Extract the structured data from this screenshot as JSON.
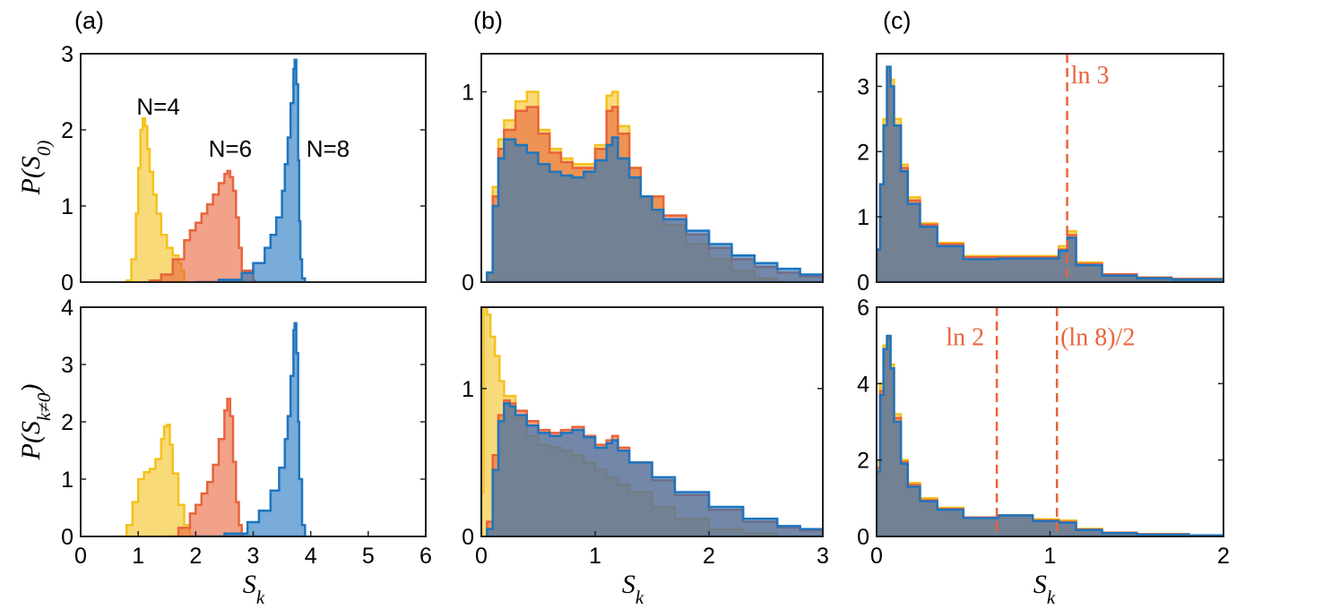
{
  "panel_labels": [
    "(a)",
    "(b)",
    "(c)"
  ],
  "y_labels": {
    "top": "P(S_0)",
    "bottom": "P(S_{k≠0})"
  },
  "x_label": "S_k",
  "colors": {
    "N4": "#f4c21f",
    "N6": "#e8643b",
    "N8": "#1f75be",
    "ref_line": "#e8643b"
  },
  "chart_data": [
    {
      "id": "a-top",
      "type": "area",
      "xlim": [
        0,
        6
      ],
      "ylim": [
        0,
        3
      ],
      "xticks": [],
      "yticks": [
        0,
        1,
        2,
        3
      ],
      "xlabel": "",
      "ylabel": "P(S_0)",
      "panel": "(a)",
      "annotations": [
        {
          "text": "N=4",
          "x": 1.35,
          "y": 2.2
        },
        {
          "text": "N=6",
          "x": 2.6,
          "y": 1.65
        },
        {
          "text": "N=8",
          "x": 4.3,
          "y": 1.65
        }
      ],
      "series": [
        {
          "name": "N=4",
          "color_key": "N4",
          "x": [
            0.8,
            0.88,
            0.96,
            1.0,
            1.04,
            1.08,
            1.12,
            1.16,
            1.2,
            1.26,
            1.32,
            1.4,
            1.5,
            1.6,
            1.7,
            1.75,
            1.8
          ],
          "y": [
            0.02,
            0.3,
            0.9,
            1.5,
            2.0,
            2.15,
            2.05,
            1.75,
            1.45,
            1.15,
            0.9,
            0.62,
            0.45,
            0.35,
            0.25,
            0.15,
            0.0
          ]
        },
        {
          "name": "N=6",
          "color_key": "N6",
          "x": [
            1.2,
            1.4,
            1.6,
            1.8,
            1.9,
            2.0,
            2.1,
            2.2,
            2.3,
            2.4,
            2.5,
            2.55,
            2.6,
            2.65,
            2.7,
            2.75,
            2.8,
            3.0
          ],
          "y": [
            0.02,
            0.1,
            0.3,
            0.55,
            0.68,
            0.78,
            0.9,
            1.02,
            1.15,
            1.3,
            1.42,
            1.46,
            1.38,
            1.2,
            0.85,
            0.45,
            0.15,
            0.02
          ]
        },
        {
          "name": "N=8",
          "color_key": "N8",
          "x": [
            2.0,
            2.4,
            2.8,
            3.0,
            3.2,
            3.3,
            3.4,
            3.5,
            3.55,
            3.6,
            3.65,
            3.7,
            3.72,
            3.75,
            3.78,
            3.8,
            3.82,
            3.85,
            3.9
          ],
          "y": [
            0.0,
            0.03,
            0.12,
            0.25,
            0.45,
            0.62,
            0.85,
            1.2,
            1.55,
            1.9,
            2.35,
            2.8,
            2.92,
            2.6,
            1.6,
            0.8,
            0.3,
            0.05,
            0.0
          ]
        }
      ]
    },
    {
      "id": "b-top",
      "type": "area",
      "xlim": [
        0,
        3
      ],
      "ylim": [
        0,
        1.2
      ],
      "xticks": [],
      "yticks": [
        0,
        1
      ],
      "xlabel": "",
      "ylabel": "",
      "panel": "(b)",
      "annotations": [],
      "series": [
        {
          "name": "N=4",
          "color_key": "N4",
          "x": [
            0.05,
            0.1,
            0.15,
            0.2,
            0.3,
            0.4,
            0.5,
            0.6,
            0.7,
            0.8,
            0.9,
            1.0,
            1.1,
            1.15,
            1.2,
            1.3,
            1.4,
            1.6,
            1.8,
            2.0,
            2.2,
            2.4,
            2.6
          ],
          "y": [
            0.05,
            0.5,
            0.75,
            0.85,
            0.95,
            1.0,
            0.8,
            0.7,
            0.65,
            0.62,
            0.62,
            0.72,
            0.98,
            1.0,
            0.82,
            0.6,
            0.45,
            0.3,
            0.2,
            0.12,
            0.06,
            0.02,
            0.0
          ]
        },
        {
          "name": "N=6",
          "color_key": "N6",
          "x": [
            0.05,
            0.1,
            0.15,
            0.2,
            0.3,
            0.4,
            0.5,
            0.6,
            0.7,
            0.8,
            0.9,
            1.0,
            1.1,
            1.15,
            1.2,
            1.3,
            1.4,
            1.6,
            1.8,
            2.0,
            2.2,
            2.4,
            2.6,
            2.8,
            3.0
          ],
          "y": [
            0.05,
            0.45,
            0.7,
            0.8,
            0.9,
            0.92,
            0.78,
            0.68,
            0.63,
            0.6,
            0.6,
            0.7,
            0.9,
            0.92,
            0.78,
            0.6,
            0.45,
            0.35,
            0.25,
            0.18,
            0.12,
            0.08,
            0.05,
            0.03,
            0.01
          ]
        },
        {
          "name": "N=8",
          "color_key": "N8",
          "x": [
            0.05,
            0.1,
            0.15,
            0.2,
            0.3,
            0.4,
            0.5,
            0.6,
            0.7,
            0.8,
            0.9,
            1.0,
            1.1,
            1.15,
            1.2,
            1.3,
            1.4,
            1.5,
            1.6,
            1.8,
            2.0,
            2.2,
            2.4,
            2.6,
            2.8,
            3.0
          ],
          "y": [
            0.05,
            0.4,
            0.65,
            0.75,
            0.72,
            0.68,
            0.62,
            0.58,
            0.56,
            0.55,
            0.58,
            0.64,
            0.72,
            0.76,
            0.65,
            0.55,
            0.45,
            0.38,
            0.33,
            0.27,
            0.2,
            0.14,
            0.1,
            0.07,
            0.04,
            0.02
          ]
        }
      ]
    },
    {
      "id": "c-top",
      "type": "area",
      "xlim": [
        0,
        2
      ],
      "ylim": [
        0,
        3.5
      ],
      "xticks": [],
      "yticks": [
        0,
        1,
        2,
        3
      ],
      "xlabel": "",
      "ylabel": "",
      "panel": "(c)",
      "annotations": [],
      "ref_lines": [
        {
          "x": 1.0986,
          "label": "ln 3",
          "label_x": 1.12,
          "label_y": 3.05
        }
      ],
      "series": [
        {
          "name": "N=4",
          "color_key": "N4",
          "x": [
            0.0,
            0.02,
            0.04,
            0.06,
            0.08,
            0.1,
            0.14,
            0.18,
            0.25,
            0.35,
            0.5,
            0.7,
            0.9,
            1.05,
            1.1,
            1.15,
            1.3,
            1.5,
            1.7,
            2.0
          ],
          "y": [
            0.5,
            1.5,
            2.5,
            3.3,
            3.1,
            2.5,
            1.8,
            1.3,
            0.9,
            0.6,
            0.4,
            0.4,
            0.4,
            0.55,
            0.78,
            0.3,
            0.12,
            0.07,
            0.05,
            0.02
          ]
        },
        {
          "name": "N=6",
          "color_key": "N6",
          "x": [
            0.0,
            0.02,
            0.04,
            0.06,
            0.08,
            0.1,
            0.14,
            0.18,
            0.25,
            0.35,
            0.5,
            0.7,
            0.9,
            1.05,
            1.1,
            1.15,
            1.3,
            1.5,
            1.7,
            2.0
          ],
          "y": [
            0.5,
            1.5,
            2.4,
            3.25,
            3.0,
            2.4,
            1.75,
            1.25,
            0.88,
            0.58,
            0.38,
            0.38,
            0.38,
            0.5,
            0.72,
            0.28,
            0.12,
            0.07,
            0.05,
            0.02
          ]
        },
        {
          "name": "N=8",
          "color_key": "N8",
          "x": [
            0.0,
            0.02,
            0.04,
            0.06,
            0.08,
            0.1,
            0.14,
            0.18,
            0.25,
            0.35,
            0.5,
            0.7,
            0.9,
            1.05,
            1.1,
            1.15,
            1.3,
            1.5,
            1.7,
            2.0
          ],
          "y": [
            0.5,
            1.5,
            2.4,
            3.3,
            3.0,
            2.4,
            1.7,
            1.2,
            0.85,
            0.55,
            0.35,
            0.36,
            0.36,
            0.48,
            0.68,
            0.26,
            0.1,
            0.06,
            0.04,
            0.02
          ]
        }
      ]
    },
    {
      "id": "a-bottom",
      "type": "area",
      "xlim": [
        0,
        6
      ],
      "ylim": [
        0,
        4
      ],
      "xticks": [
        0,
        1,
        2,
        3,
        4,
        5,
        6
      ],
      "yticks": [
        0,
        1,
        2,
        3,
        4
      ],
      "xlabel": "S_k",
      "ylabel": "P(S_{k≠0})",
      "panel": "",
      "annotations": [],
      "series": [
        {
          "name": "N=4",
          "color_key": "N4",
          "x": [
            0.6,
            0.8,
            0.9,
            1.0,
            1.1,
            1.2,
            1.3,
            1.4,
            1.45,
            1.5,
            1.55,
            1.6,
            1.7,
            1.8,
            1.9
          ],
          "y": [
            0.0,
            0.2,
            0.6,
            1.0,
            1.12,
            1.18,
            1.35,
            1.7,
            1.92,
            1.95,
            1.6,
            1.1,
            0.55,
            0.2,
            0.02
          ]
        },
        {
          "name": "N=6",
          "color_key": "N6",
          "x": [
            1.5,
            1.7,
            1.9,
            2.0,
            2.1,
            2.2,
            2.3,
            2.4,
            2.5,
            2.55,
            2.6,
            2.65,
            2.7,
            2.75,
            2.8
          ],
          "y": [
            0.0,
            0.15,
            0.4,
            0.55,
            0.75,
            0.95,
            1.25,
            1.7,
            2.2,
            2.4,
            2.1,
            1.3,
            0.6,
            0.2,
            0.02
          ]
        },
        {
          "name": "N=8",
          "color_key": "N8",
          "x": [
            2.0,
            2.5,
            2.9,
            3.1,
            3.3,
            3.45,
            3.55,
            3.6,
            3.65,
            3.7,
            3.72,
            3.75,
            3.78,
            3.8,
            3.85,
            3.9
          ],
          "y": [
            0.0,
            0.05,
            0.25,
            0.45,
            0.8,
            1.2,
            1.7,
            2.1,
            2.8,
            3.6,
            3.72,
            3.2,
            2.0,
            1.0,
            0.2,
            0.0
          ]
        }
      ]
    },
    {
      "id": "b-bottom",
      "type": "area",
      "xlim": [
        0,
        3
      ],
      "ylim": [
        0,
        1.55
      ],
      "xticks": [
        0,
        1,
        2,
        3
      ],
      "yticks": [
        0,
        1
      ],
      "xlabel": "S_k",
      "ylabel": "",
      "panel": "",
      "annotations": [],
      "series": [
        {
          "name": "N=4",
          "color_key": "N4",
          "x": [
            0.0,
            0.02,
            0.05,
            0.08,
            0.12,
            0.16,
            0.2,
            0.3,
            0.4,
            0.5,
            0.6,
            0.7,
            0.8,
            0.9,
            1.0,
            1.1,
            1.2,
            1.3,
            1.5,
            1.7,
            2.0,
            2.3,
            2.6
          ],
          "y": [
            0.3,
            1.55,
            1.5,
            1.35,
            1.22,
            1.05,
            0.95,
            0.8,
            0.68,
            0.62,
            0.6,
            0.58,
            0.55,
            0.5,
            0.45,
            0.4,
            0.35,
            0.3,
            0.2,
            0.12,
            0.05,
            0.02,
            0.0
          ]
        },
        {
          "name": "N=6",
          "color_key": "N6",
          "x": [
            0.05,
            0.1,
            0.15,
            0.2,
            0.25,
            0.3,
            0.4,
            0.5,
            0.6,
            0.7,
            0.8,
            0.9,
            1.0,
            1.1,
            1.15,
            1.2,
            1.3,
            1.5,
            1.7,
            2.0,
            2.3,
            2.6,
            2.8,
            3.0
          ],
          "y": [
            0.1,
            0.55,
            0.82,
            0.92,
            0.9,
            0.85,
            0.78,
            0.72,
            0.7,
            0.72,
            0.74,
            0.68,
            0.62,
            0.65,
            0.68,
            0.6,
            0.5,
            0.38,
            0.28,
            0.18,
            0.1,
            0.06,
            0.04,
            0.02
          ]
        },
        {
          "name": "N=8",
          "color_key": "N8",
          "x": [
            0.05,
            0.1,
            0.15,
            0.2,
            0.25,
            0.3,
            0.4,
            0.5,
            0.6,
            0.7,
            0.8,
            0.9,
            1.0,
            1.1,
            1.15,
            1.2,
            1.3,
            1.5,
            1.7,
            2.0,
            2.3,
            2.6,
            2.8,
            3.0
          ],
          "y": [
            0.05,
            0.45,
            0.78,
            0.9,
            0.88,
            0.82,
            0.75,
            0.7,
            0.68,
            0.7,
            0.72,
            0.67,
            0.6,
            0.63,
            0.65,
            0.58,
            0.5,
            0.4,
            0.3,
            0.2,
            0.12,
            0.07,
            0.05,
            0.03
          ]
        }
      ]
    },
    {
      "id": "c-bottom",
      "type": "area",
      "xlim": [
        0,
        2
      ],
      "ylim": [
        0,
        6
      ],
      "xticks": [
        0,
        1,
        2
      ],
      "yticks": [
        0,
        2,
        4,
        6
      ],
      "xlabel": "S_k",
      "ylabel": "",
      "panel": "",
      "annotations": [],
      "ref_lines": [
        {
          "x": 0.6931,
          "label": "ln 2",
          "label_x": 0.4,
          "label_y": 5.0
        },
        {
          "x": 1.0397,
          "label": "(ln 8)/2",
          "label_x": 1.06,
          "label_y": 5.0
        }
      ],
      "series": [
        {
          "name": "N=4",
          "color_key": "N4",
          "x": [
            0.0,
            0.02,
            0.04,
            0.06,
            0.08,
            0.1,
            0.14,
            0.18,
            0.25,
            0.35,
            0.5,
            0.7,
            0.9,
            1.05,
            1.15,
            1.3,
            1.5,
            1.8,
            2.0
          ],
          "y": [
            2.0,
            4.0,
            5.0,
            5.2,
            4.5,
            3.2,
            2.0,
            1.4,
            1.0,
            0.75,
            0.5,
            0.55,
            0.45,
            0.42,
            0.2,
            0.1,
            0.06,
            0.03,
            0.02
          ]
        },
        {
          "name": "N=6",
          "color_key": "N6",
          "x": [
            0.0,
            0.02,
            0.04,
            0.06,
            0.08,
            0.1,
            0.14,
            0.18,
            0.25,
            0.35,
            0.5,
            0.7,
            0.9,
            1.05,
            1.15,
            1.3,
            1.5,
            1.8,
            2.0
          ],
          "y": [
            1.8,
            3.8,
            4.9,
            5.2,
            4.4,
            3.1,
            1.95,
            1.35,
            0.95,
            0.72,
            0.5,
            0.55,
            0.42,
            0.38,
            0.18,
            0.1,
            0.06,
            0.03,
            0.02
          ]
        },
        {
          "name": "N=8",
          "color_key": "N8",
          "x": [
            0.0,
            0.02,
            0.04,
            0.06,
            0.08,
            0.1,
            0.14,
            0.18,
            0.25,
            0.35,
            0.5,
            0.7,
            0.9,
            1.05,
            1.15,
            1.3,
            1.5,
            1.8,
            2.0
          ],
          "y": [
            1.7,
            3.7,
            4.9,
            5.25,
            4.4,
            3.0,
            1.9,
            1.3,
            0.92,
            0.7,
            0.48,
            0.55,
            0.4,
            0.36,
            0.17,
            0.09,
            0.05,
            0.03,
            0.02
          ]
        }
      ]
    }
  ]
}
